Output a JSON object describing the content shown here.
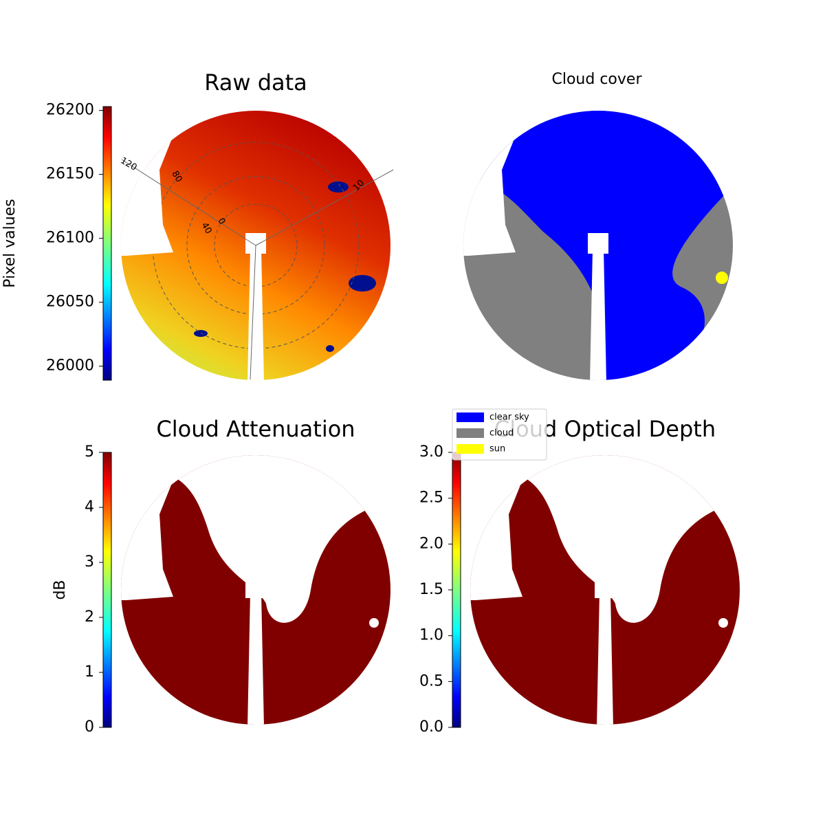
{
  "chart_data": [
    {
      "type": "image",
      "title": "Raw data",
      "colorbar_label": "Pixel values",
      "clim": [
        25989,
        26203
      ],
      "cticks": [
        26000,
        26050,
        26100,
        26150,
        26200
      ],
      "colormap": "jet",
      "annotations": [
        "120",
        "80",
        "40",
        "0",
        "10"
      ]
    },
    {
      "type": "image",
      "title": "Cloud cover",
      "legend": [
        {
          "name": "clear sky",
          "color": "#0000ff"
        },
        {
          "name": "cloud",
          "color": "#808080"
        },
        {
          "name": "sun",
          "color": "#ffff00"
        }
      ]
    },
    {
      "type": "image",
      "title": "Cloud Attenuation",
      "colorbar_label": "dB",
      "clim": [
        0,
        5
      ],
      "cticks": [
        0,
        1,
        2,
        3,
        4,
        5
      ],
      "colormap": "jet"
    },
    {
      "type": "image",
      "title": "Cloud Optical Depth",
      "clim": [
        0,
        3
      ],
      "cticks": [
        {
          "value": 0,
          "label": "0.0"
        },
        {
          "value": 0.5,
          "label": "0.5"
        },
        {
          "value": 1,
          "label": "1.0"
        },
        {
          "value": 1.5,
          "label": "1.5"
        },
        {
          "value": 2,
          "label": "2.0"
        },
        {
          "value": 2.5,
          "label": "2.5"
        },
        {
          "value": 3,
          "label": "3.0"
        }
      ],
      "colormap": "jet"
    }
  ]
}
